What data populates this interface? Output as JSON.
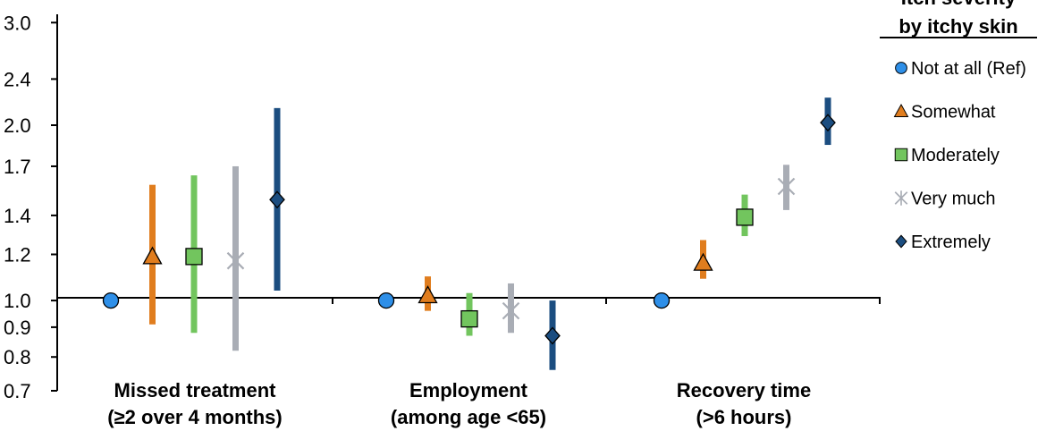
{
  "chart_data": {
    "type": "scatter",
    "subtype": "point-estimate-with-confidence-intervals",
    "y_scale": "log",
    "ylim": [
      0.7,
      3.1
    ],
    "yticks": [
      "3.0",
      "2.4",
      "2.0",
      "1.7",
      "1.4",
      "1.2",
      "1.0",
      "0.9",
      "0.8",
      "0.7"
    ],
    "ytick_values": [
      3.0,
      2.4,
      2.0,
      1.7,
      1.4,
      1.2,
      1.0,
      0.9,
      0.8,
      0.7
    ],
    "reference_line": 1.0,
    "categories": [
      {
        "line1": "Missed treatment",
        "line2": "(≥2 over 4 months)"
      },
      {
        "line1": "Employment",
        "line2": "(among age <65)"
      },
      {
        "line1": "Recovery time",
        "line2": "(>6 hours)"
      }
    ],
    "legend": {
      "title_line1": "Itch severity",
      "title_line2": "by itchy skin",
      "placement": "right"
    },
    "series": [
      {
        "name": "Not at all (Ref)",
        "marker": "circle",
        "color": "#2e8fe8",
        "estimates": [
          1.0,
          1.0,
          1.0
        ],
        "lower": [
          null,
          null,
          null
        ],
        "upper": [
          null,
          null,
          null
        ]
      },
      {
        "name": "Somewhat",
        "marker": "triangle",
        "color": "#e07d1e",
        "estimates": [
          1.19,
          1.02,
          1.16
        ],
        "lower": [
          0.91,
          0.96,
          1.09
        ],
        "upper": [
          1.58,
          1.1,
          1.27
        ]
      },
      {
        "name": "Moderately",
        "marker": "square",
        "color": "#72c55e",
        "estimates": [
          1.19,
          0.93,
          1.39
        ],
        "lower": [
          0.88,
          0.87,
          1.29
        ],
        "upper": [
          1.64,
          1.03,
          1.52
        ]
      },
      {
        "name": "Very much",
        "marker": "asterisk",
        "color": "#a9adb5",
        "estimates": [
          1.17,
          0.96,
          1.57
        ],
        "lower": [
          0.82,
          0.88,
          1.43
        ],
        "upper": [
          1.7,
          1.07,
          1.71
        ]
      },
      {
        "name": "Extremely",
        "marker": "diamond",
        "color": "#1b4d80",
        "estimates": [
          1.49,
          0.87,
          2.02
        ],
        "lower": [
          1.04,
          0.76,
          1.85
        ],
        "upper": [
          2.14,
          1.0,
          2.23
        ]
      }
    ]
  }
}
